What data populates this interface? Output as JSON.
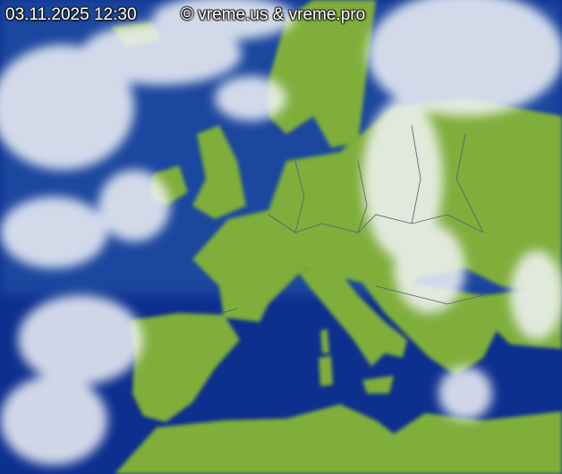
{
  "map": {
    "timestamp": "03.11.2025 12:30",
    "copyright": "© vreme.us & vreme.pro",
    "colors": {
      "sea": "#0b2a8a",
      "land": "#7fae3a",
      "cloud": "#f2f4f8",
      "borders": "#5a5a78"
    }
  }
}
